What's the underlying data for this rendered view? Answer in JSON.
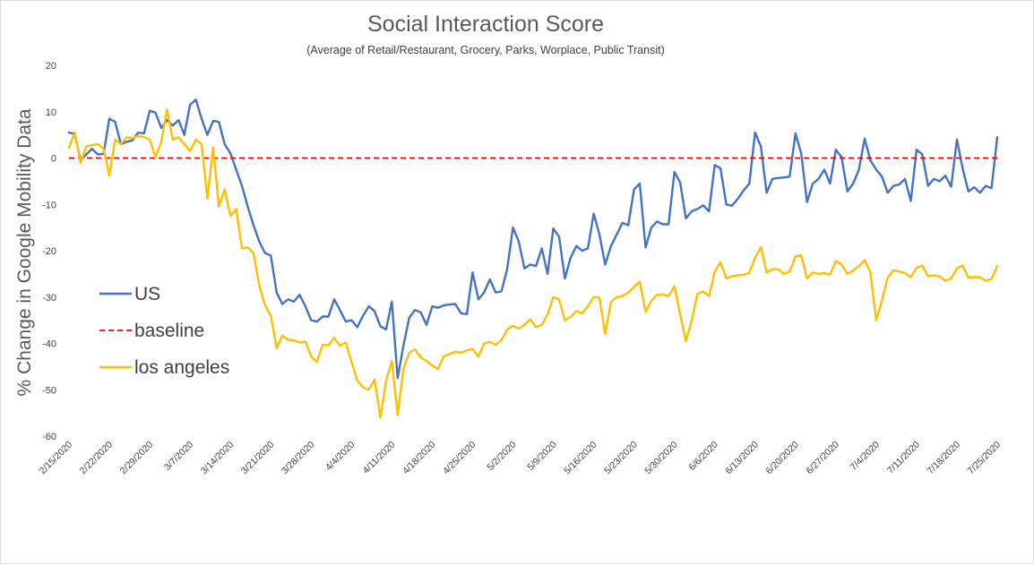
{
  "chart_data": {
    "type": "line",
    "title": "Social Interaction Score",
    "subtitle": "(Average of Retail/Restaurant, Grocery, Parks, Worplace, Public Transit)",
    "ylabel": "% Change in Google Mobility Data",
    "xlabel": "",
    "ylim": [
      -60,
      20
    ],
    "yticks": [
      "20",
      "10",
      "0",
      "-10",
      "-20",
      "-30",
      "-40",
      "-50",
      "-60"
    ],
    "xtick_labels": [
      "2/15/2020",
      "2/22/2020",
      "2/29/2020",
      "3/7/2020",
      "3/14/2020",
      "3/21/2020",
      "3/28/2020",
      "4/4/2020",
      "4/11/2020",
      "4/18/2020",
      "4/25/2020",
      "5/2/2020",
      "5/9/2020",
      "5/16/2020",
      "5/23/2020",
      "5/30/2020",
      "6/6/2020",
      "6/13/2020",
      "6/20/2020",
      "6/27/2020",
      "7/4/2020",
      "7/11/2020",
      "7/18/2020",
      "7/25/2020"
    ],
    "start_date": "2/15/2020",
    "num_days": 162,
    "legend_position": "left",
    "series": [
      {
        "name": "US",
        "color": "#4472c4",
        "dashed": false,
        "values": [
          5.5,
          5.2,
          -0.5,
          0.8,
          2.0,
          0.8,
          0.9,
          8.5,
          7.8,
          3.0,
          3.5,
          3.8,
          5.5,
          5.3,
          10.2,
          9.8,
          6.5,
          8.2,
          7.0,
          8.2,
          5.0,
          11.5,
          12.6,
          8.5,
          5.0,
          8.0,
          7.8,
          3.0,
          1.0,
          -2.5,
          -6.0,
          -10.5,
          -14.5,
          -18.0,
          -20.5,
          -21.0,
          -29.0,
          -31.5,
          -30.5,
          -31.0,
          -29.5,
          -32.0,
          -35.0,
          -35.3,
          -34.2,
          -34.2,
          -30.5,
          -32.8,
          -35.3,
          -35.0,
          -36.5,
          -34.0,
          -32.0,
          -33.0,
          -36.3,
          -37.0,
          -31.0,
          -47.5,
          -40.5,
          -34.5,
          -32.8,
          -33.3,
          -36.0,
          -32.0,
          -32.3,
          -31.8,
          -31.6,
          -31.5,
          -33.5,
          -33.7,
          -24.7,
          -30.5,
          -29.0,
          -26.2,
          -29.0,
          -28.8,
          -24.0,
          -15.0,
          -18.0,
          -23.8,
          -23.0,
          -23.3,
          -19.5,
          -25.0,
          -15.2,
          -17.0,
          -26.0,
          -21.5,
          -19.0,
          -20.0,
          -19.5,
          -12.0,
          -16.5,
          -23.0,
          -19.0,
          -16.5,
          -14.0,
          -14.5,
          -6.8,
          -5.5,
          -19.3,
          -15.0,
          -13.7,
          -14.3,
          -14.3,
          -3.0,
          -5.3,
          -13.0,
          -11.5,
          -11.0,
          -10.2,
          -11.5,
          -1.5,
          -2.2,
          -10.0,
          -10.3,
          -8.8,
          -7.0,
          -5.5,
          5.5,
          2.5,
          -7.5,
          -4.5,
          -4.3,
          -4.2,
          -4.0,
          5.3,
          1.0,
          -9.5,
          -5.5,
          -4.5,
          -2.5,
          -5.5,
          1.8,
          0.2,
          -7.2,
          -5.5,
          -2.5,
          4.2,
          -0.5,
          -2.5,
          -4.0,
          -7.5,
          -6.0,
          -5.7,
          -4.5,
          -9.3,
          1.8,
          0.8,
          -6.0,
          -4.5,
          -5.0,
          -3.8,
          -6.2,
          4.0,
          -2.3,
          -7.2,
          -6.3,
          -7.5,
          -6.0,
          -6.5,
          4.5
        ]
      },
      {
        "name": "baseline",
        "color": "#ff0000",
        "dashed": true,
        "values": [
          0,
          0
        ]
      },
      {
        "name": "los angeles",
        "color": "#ffc000",
        "dashed": false,
        "values": [
          2.2,
          5.5,
          -1.0,
          2.5,
          2.8,
          3.0,
          2.0,
          -3.8,
          4.0,
          3.0,
          4.5,
          4.3,
          4.8,
          4.5,
          4.0,
          0.2,
          3.5,
          10.5,
          4.0,
          4.5,
          3.0,
          1.5,
          4.0,
          3.0,
          -8.7,
          2.3,
          -10.5,
          -6.8,
          -12.5,
          -11.0,
          -19.5,
          -19.3,
          -20.5,
          -27.5,
          -31.8,
          -34.0,
          -41.0,
          -38.3,
          -39.2,
          -39.3,
          -39.8,
          -39.6,
          -42.8,
          -44.0,
          -40.3,
          -40.4,
          -38.8,
          -40.5,
          -39.8,
          -44.0,
          -48.0,
          -49.5,
          -50.0,
          -47.8,
          -56.0,
          -48.0,
          -43.8,
          -55.5,
          -45.5,
          -42.0,
          -41.3,
          -43.0,
          -43.8,
          -44.8,
          -45.5,
          -42.8,
          -42.3,
          -41.8,
          -42.0,
          -41.5,
          -41.2,
          -42.8,
          -40.0,
          -39.7,
          -40.3,
          -39.3,
          -37.0,
          -36.2,
          -36.8,
          -36.0,
          -34.8,
          -36.5,
          -36.0,
          -33.8,
          -30.0,
          -30.5,
          -35.0,
          -34.3,
          -33.0,
          -33.5,
          -32.0,
          -30.0,
          -30.1,
          -38.0,
          -31.0,
          -30.0,
          -29.8,
          -29.0,
          -27.8,
          -26.7,
          -33.2,
          -30.8,
          -29.5,
          -29.5,
          -29.8,
          -27.7,
          -33.8,
          -39.5,
          -35.0,
          -29.3,
          -28.8,
          -29.8,
          -24.5,
          -22.5,
          -26.0,
          -25.5,
          -25.3,
          -25.2,
          -24.8,
          -21.5,
          -19.2,
          -24.7,
          -24.0,
          -24.0,
          -25.0,
          -24.5,
          -21.2,
          -21.0,
          -26.0,
          -24.7,
          -25.0,
          -24.8,
          -25.2,
          -22.2,
          -23.0,
          -25.0,
          -24.3,
          -23.3,
          -22.0,
          -24.7,
          -35.0,
          -30.7,
          -25.8,
          -24.2,
          -24.5,
          -24.8,
          -25.7,
          -23.7,
          -23.2,
          -25.5,
          -25.3,
          -25.5,
          -26.5,
          -26.0,
          -23.8,
          -23.2,
          -25.8,
          -25.7,
          -25.7,
          -26.5,
          -26.1,
          -23.3
        ]
      }
    ]
  }
}
